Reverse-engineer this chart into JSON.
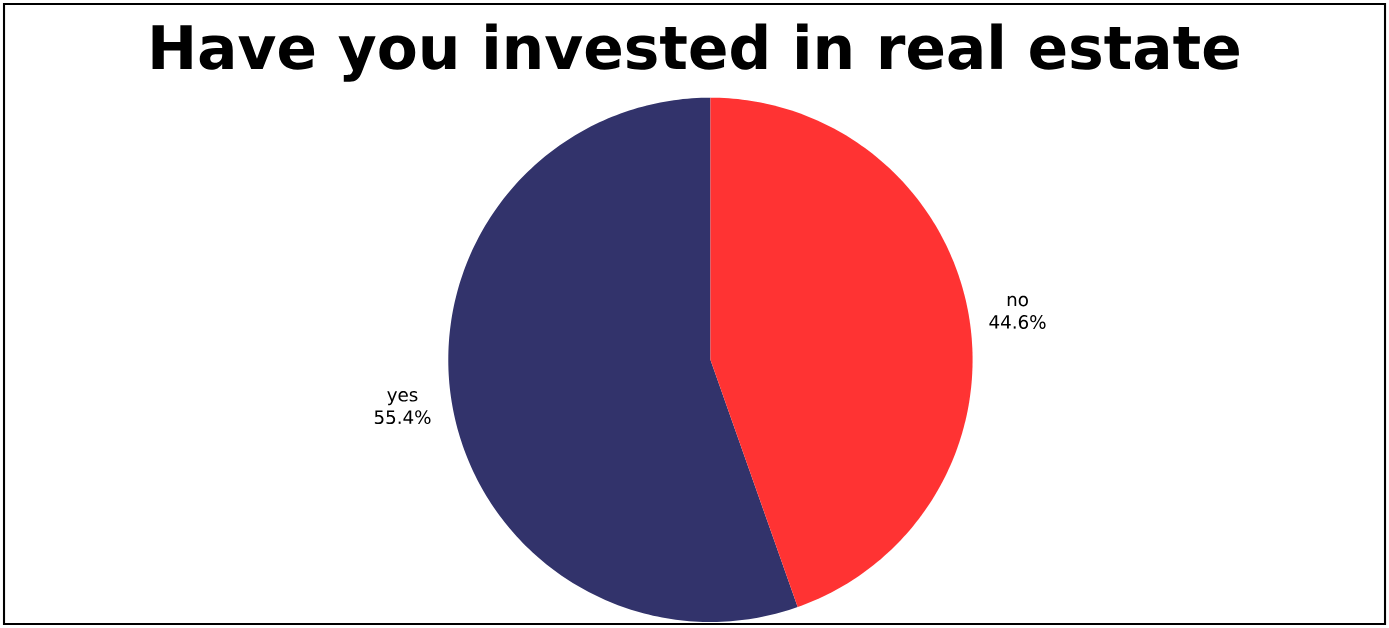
{
  "chart_data": {
    "type": "pie",
    "title": "Have  you  invested  in real  estate",
    "categories": [
      "yes",
      "no"
    ],
    "values": [
      55.4,
      44.6
    ],
    "colors": [
      "#32336b",
      "#ff3333"
    ],
    "value_labels": [
      "55.4%",
      "44.6%"
    ]
  }
}
